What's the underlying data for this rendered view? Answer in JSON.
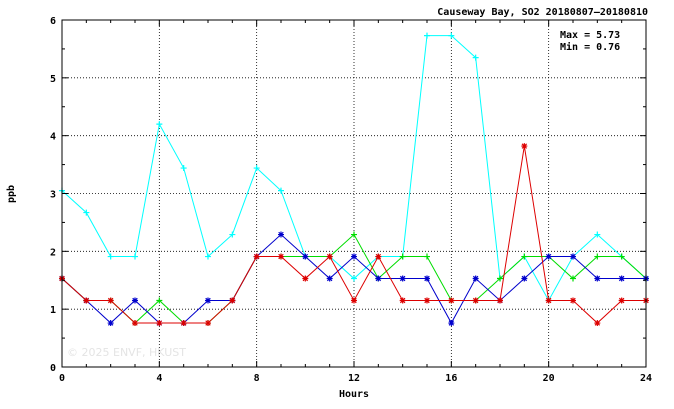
{
  "chart_data": {
    "type": "line",
    "title": "Causeway Bay, SO2 20180807–20180810",
    "xlabel": "Hours",
    "ylabel": "ppb",
    "xlim": [
      0,
      24
    ],
    "ylim": [
      0,
      6
    ],
    "xticks": [
      0,
      4,
      8,
      12,
      16,
      20,
      24
    ],
    "yticks": [
      0,
      1,
      2,
      3,
      4,
      5,
      6
    ],
    "grid": true,
    "max_label": "Max = 5.73",
    "min_label": "Min = 0.76",
    "watermark": "© 2025  ENVF, HKUST",
    "x": [
      0,
      1,
      2,
      3,
      4,
      5,
      6,
      7,
      8,
      9,
      10,
      11,
      12,
      13,
      14,
      15,
      16,
      17,
      18,
      19,
      20,
      21,
      22,
      23,
      24
    ],
    "series": [
      {
        "color": "#00ffff",
        "marker": "plus",
        "values": [
          3.05,
          2.67,
          1.91,
          1.91,
          4.2,
          3.44,
          1.91,
          2.29,
          3.44,
          3.05,
          1.91,
          1.91,
          1.53,
          1.91,
          1.91,
          5.73,
          5.73,
          5.35,
          1.53,
          1.91,
          1.15,
          1.91,
          2.29,
          1.91,
          1.53
        ]
      },
      {
        "color": "#00dd00",
        "marker": "plus",
        "values": [
          1.53,
          1.15,
          1.15,
          0.76,
          1.15,
          0.76,
          0.76,
          1.15,
          1.91,
          1.91,
          1.91,
          1.91,
          2.29,
          1.53,
          1.91,
          1.91,
          1.15,
          1.15,
          1.53,
          1.91,
          1.91,
          1.53,
          1.91,
          1.91,
          1.53
        ]
      },
      {
        "color": "#0000cc",
        "marker": "star",
        "values": [
          1.53,
          1.15,
          0.76,
          1.15,
          0.76,
          0.76,
          1.15,
          1.15,
          1.91,
          2.29,
          1.91,
          1.53,
          1.91,
          1.53,
          1.53,
          1.53,
          0.76,
          1.53,
          1.15,
          1.53,
          1.91,
          1.91,
          1.53,
          1.53,
          1.53
        ]
      },
      {
        "color": "#dd0000",
        "marker": "star",
        "values": [
          1.53,
          1.15,
          1.15,
          0.76,
          0.76,
          0.76,
          0.76,
          1.15,
          1.91,
          1.91,
          1.53,
          1.91,
          1.15,
          1.91,
          1.15,
          1.15,
          1.15,
          1.15,
          1.15,
          3.82,
          1.15,
          1.15,
          0.76,
          1.15,
          1.15
        ]
      }
    ]
  }
}
